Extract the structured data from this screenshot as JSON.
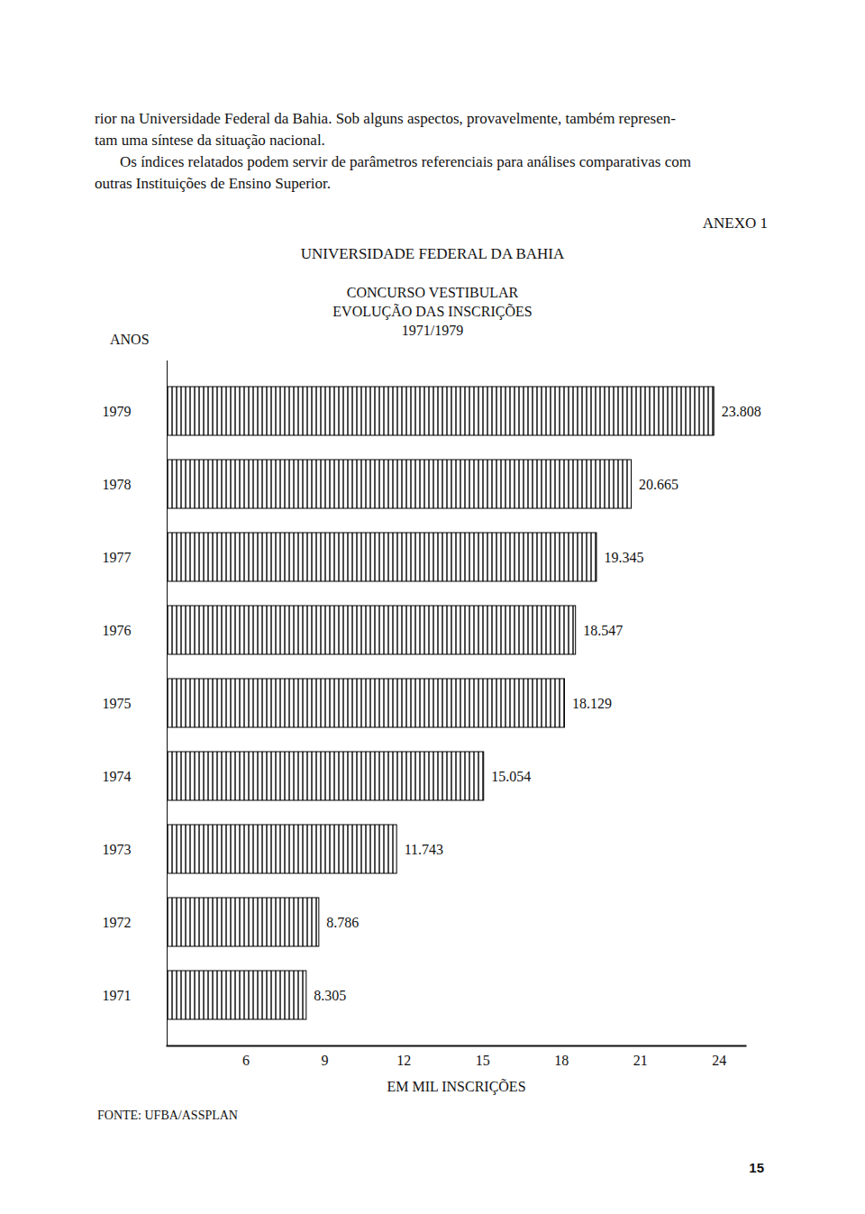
{
  "document": {
    "text_lines": [
      "rior na Universidade Federal da Bahia. Sob alguns aspectos, provavelmente, também represen-",
      "tam uma síntese da situação nacional.",
      "Os índices relatados podem servir de parâmetros referenciais para análises comparativas com",
      "outras Instituições de Ensino Superior."
    ],
    "annex": "ANEXO 1",
    "source": "FONTE: UFBA/ASSPLAN",
    "page_number": "15"
  },
  "chart_data": {
    "type": "bar",
    "orientation": "horizontal",
    "title": "UNIVERSIDADE FEDERAL DA BAHIA",
    "subtitle": [
      "CONCURSO VESTIBULAR",
      "EVOLUÇÃO DAS INSCRIÇÕES",
      "1971/1979"
    ],
    "y_label": "ANOS",
    "x_label": "EM MIL INSCRIÇÕES",
    "categories": [
      "1979",
      "1978",
      "1977",
      "1976",
      "1975",
      "1974",
      "1973",
      "1972",
      "1971"
    ],
    "values": [
      23.808,
      20.665,
      19.345,
      18.547,
      18.129,
      15.054,
      11.743,
      8.786,
      8.305
    ],
    "color": "#000000",
    "xlim": [
      3,
      25
    ],
    "xticks": [
      6,
      9,
      12,
      15,
      18,
      21,
      24
    ],
    "data_labels": true,
    "grid": false
  }
}
